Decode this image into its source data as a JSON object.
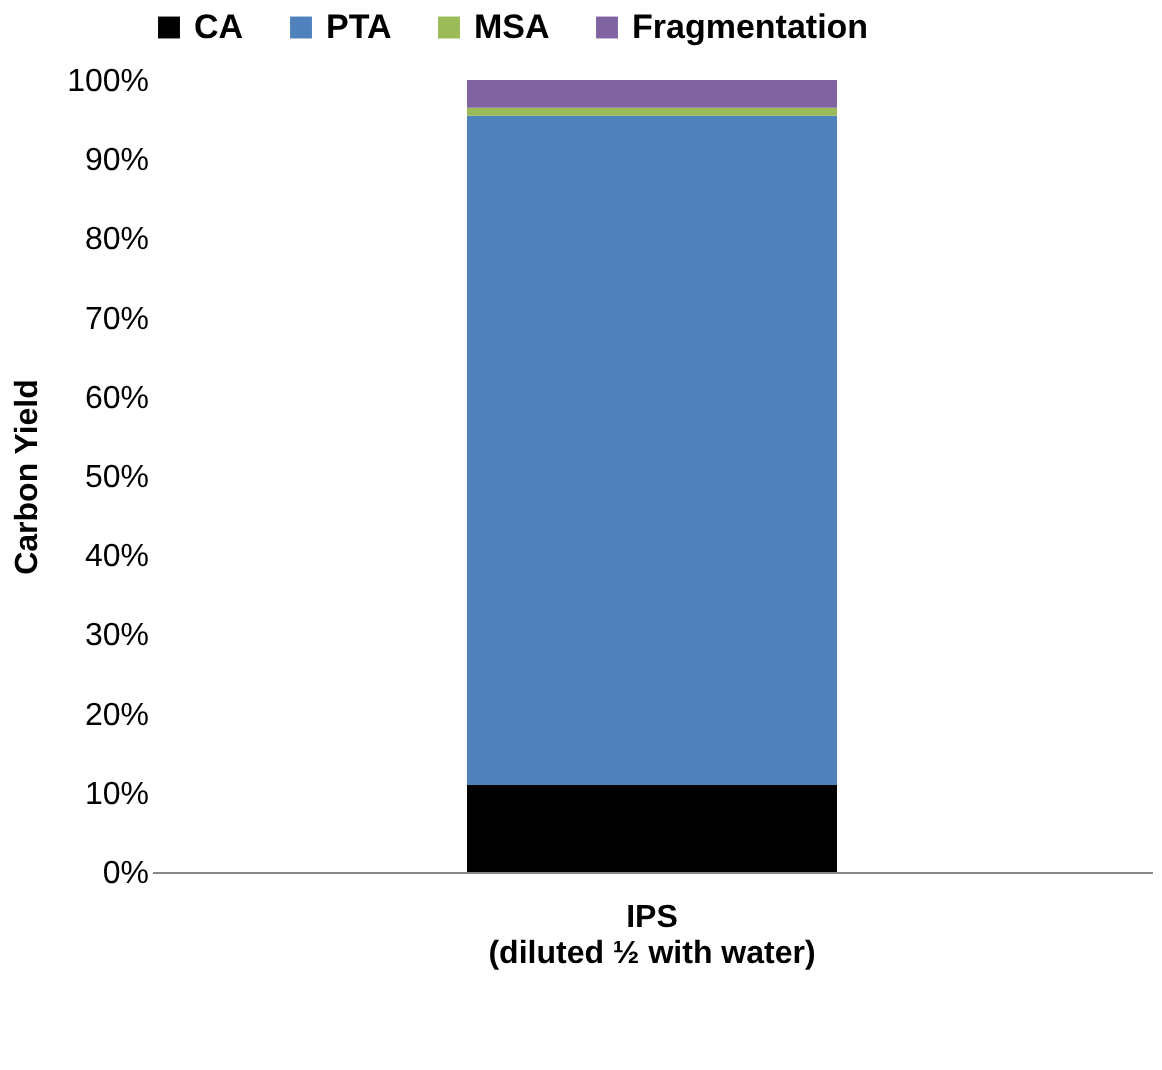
{
  "chart_data": {
    "type": "bar",
    "stacked": true,
    "ylabel": "Carbon Yield",
    "categories": [
      "IPS\n(diluted ½ with water)"
    ],
    "series": [
      {
        "name": "CA",
        "color": "#000000",
        "values": [
          11
        ]
      },
      {
        "name": "PTA",
        "color": "#4f81bd",
        "values": [
          84.5
        ]
      },
      {
        "name": "MSA",
        "color": "#9bbb59",
        "values": [
          1
        ]
      },
      {
        "name": "Fragmentation",
        "color": "#8064a2",
        "values": [
          3.5
        ]
      }
    ],
    "ylim": [
      0,
      100
    ],
    "yticks": [
      {
        "value": 0,
        "label": "0%"
      },
      {
        "value": 10,
        "label": "10%"
      },
      {
        "value": 20,
        "label": "20%"
      },
      {
        "value": 30,
        "label": "30%"
      },
      {
        "value": 40,
        "label": "40%"
      },
      {
        "value": 50,
        "label": "50%"
      },
      {
        "value": 60,
        "label": "60%"
      },
      {
        "value": 70,
        "label": "70%"
      },
      {
        "value": 80,
        "label": "80%"
      },
      {
        "value": 90,
        "label": "90%"
      },
      {
        "value": 100,
        "label": "100%"
      }
    ],
    "grid": false,
    "legend": "top"
  }
}
